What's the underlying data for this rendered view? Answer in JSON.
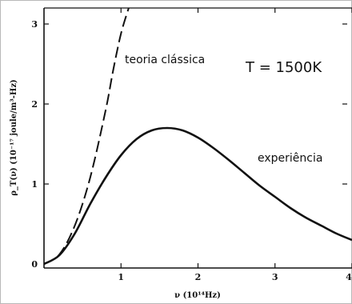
{
  "chart_data": {
    "type": "line",
    "title": "",
    "xlabel": "ν (10¹⁴Hz)",
    "ylabel": "ρ_T(ν) (10⁻¹⁷ joule/m³-Hz)",
    "xlim": [
      0,
      4
    ],
    "ylim": [
      0,
      3.2
    ],
    "x_ticks": [
      "1",
      "2",
      "3",
      "4"
    ],
    "y_ticks": [
      "0",
      "1",
      "2",
      "3"
    ],
    "grid": false,
    "series": [
      {
        "name": "teoria clássica",
        "style": "dashed",
        "x": [
          0,
          0.2,
          0.4,
          0.6,
          0.8,
          0.9,
          1.0,
          1.1
        ],
        "y": [
          0,
          0.12,
          0.48,
          1.08,
          1.92,
          2.43,
          2.88,
          3.2
        ]
      },
      {
        "name": "experiência",
        "style": "solid",
        "x": [
          0,
          0.2,
          0.4,
          0.6,
          0.8,
          1.0,
          1.2,
          1.4,
          1.6,
          1.8,
          2.0,
          2.2,
          2.4,
          2.6,
          2.8,
          3.0,
          3.2,
          3.4,
          3.6,
          3.8,
          4.0
        ],
        "y": [
          0,
          0.11,
          0.38,
          0.75,
          1.08,
          1.36,
          1.56,
          1.67,
          1.7,
          1.67,
          1.58,
          1.45,
          1.3,
          1.14,
          0.98,
          0.84,
          0.7,
          0.58,
          0.48,
          0.38,
          0.3
        ]
      }
    ]
  },
  "annotations": {
    "classical": "teoria clássica",
    "experiment": "experiência",
    "temperature": "T = 1500K"
  },
  "colors": {
    "line": "#111111",
    "frame": "#b8b8b8"
  }
}
